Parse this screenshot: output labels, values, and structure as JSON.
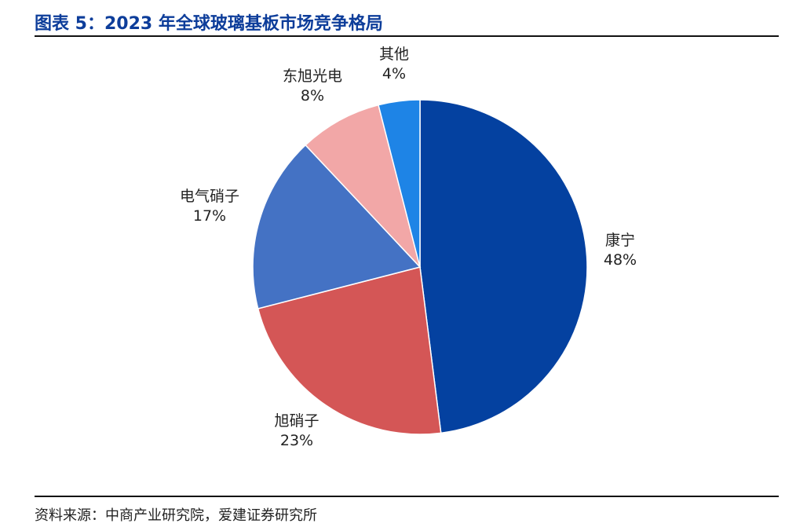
{
  "title": "图表 5：2023 年全球玻璃基板市场竞争格局",
  "source": "资料来源：中商产业研究院，爱建证券研究所",
  "chart_data": {
    "type": "pie",
    "title": "2023 年全球玻璃基板市场竞争格局",
    "start": "12 o'clock, clockwise",
    "slices": [
      {
        "label": "康宁",
        "value": 48,
        "value_label": "48%",
        "color": "#0441A0"
      },
      {
        "label": "旭硝子",
        "value": 23,
        "value_label": "23%",
        "color": "#D45656"
      },
      {
        "label": "电气硝子",
        "value": 17,
        "value_label": "17%",
        "color": "#4472C4"
      },
      {
        "label": "东旭光电",
        "value": 8,
        "value_label": "8%",
        "color": "#F2A7A7"
      },
      {
        "label": "其他",
        "value": 4,
        "value_label": "4%",
        "color": "#1E84E6"
      }
    ]
  }
}
